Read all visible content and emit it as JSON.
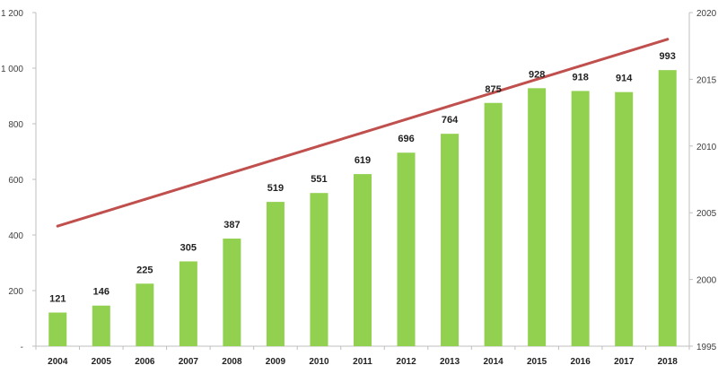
{
  "chart_data": {
    "type": "bar",
    "title": "",
    "xlabel": "",
    "ylabel": "",
    "categories": [
      "2004",
      "2005",
      "2006",
      "2007",
      "2008",
      "2009",
      "2010",
      "2011",
      "2012",
      "2013",
      "2014",
      "2015",
      "2016",
      "2017",
      "2018"
    ],
    "series": [
      {
        "type": "bar",
        "axis": "left",
        "values": [
          121,
          146,
          225,
          305,
          387,
          519,
          551,
          619,
          696,
          764,
          875,
          928,
          918,
          914,
          993
        ],
        "color": "#92D050"
      },
      {
        "type": "line",
        "axis": "right",
        "values": [
          2004,
          2005,
          2006,
          2007,
          2008,
          2009,
          2010,
          2011,
          2012,
          2013,
          2014,
          2015,
          2016,
          2017,
          2018
        ],
        "color": "#C0504D"
      }
    ],
    "ylim": [
      0,
      1200
    ],
    "y_ticks": [
      "-",
      "200",
      "400",
      "600",
      "800",
      "1 000",
      "1 200"
    ],
    "y2lim": [
      1995,
      2020
    ],
    "y2_ticks": [
      "1995",
      "2000",
      "2005",
      "2010",
      "2015",
      "2020"
    ],
    "data_labels": true,
    "grid": false,
    "legend": "none"
  }
}
